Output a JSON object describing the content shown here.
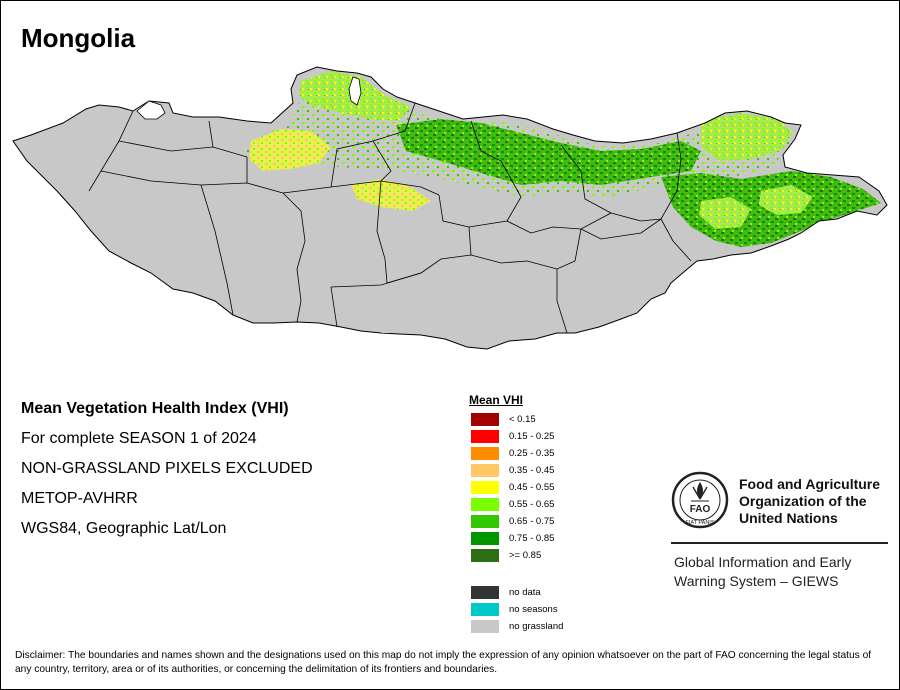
{
  "map": {
    "title": "Mongolia",
    "country_fill": "#c8c8c8",
    "boundary_color": "#000000"
  },
  "info": {
    "lines": [
      "Mean Vegetation Health Index (VHI)",
      "For complete SEASON 1 of 2024",
      "NON-GRASSLAND PIXELS EXCLUDED",
      "METOP-AVHRR",
      "WGS84, Geographic Lat/Lon"
    ]
  },
  "legend": {
    "title": "Mean VHI",
    "classes": [
      {
        "label": "< 0.15",
        "color": "#a50000"
      },
      {
        "label": "0.15 - 0.25",
        "color": "#ff0000"
      },
      {
        "label": "0.25 - 0.35",
        "color": "#ff8c00"
      },
      {
        "label": "0.35 - 0.45",
        "color": "#ffc864"
      },
      {
        "label": "0.45 - 0.55",
        "color": "#ffff00"
      },
      {
        "label": "0.55 - 0.65",
        "color": "#78ff00"
      },
      {
        "label": "0.65 - 0.75",
        "color": "#32c800"
      },
      {
        "label": "0.75 - 0.85",
        "color": "#009600"
      },
      {
        "label": ">= 0.85",
        "color": "#2d6e14"
      }
    ],
    "extras": [
      {
        "label": "no data",
        "color": "#333333"
      },
      {
        "label": "no seasons",
        "color": "#00c8c8"
      },
      {
        "label": "no grassland",
        "color": "#c8c8c8"
      }
    ]
  },
  "fao": {
    "emblem_text": "FAO",
    "emblem_motto": "FIAT PANIS",
    "name_lines": [
      "Food and Agriculture",
      "Organization of the",
      "United Nations"
    ],
    "giews_lines": [
      "Global Information and Early",
      "Warning System – GIEWS"
    ]
  },
  "disclaimer": "Disclaimer: The boundaries and names shown and the designations used on this map do not imply the expression of any opinion whatsoever on the part of FAO concerning the legal status of any country, territory, area or of its authorities, or concerning the delimitation of its frontiers and boundaries."
}
